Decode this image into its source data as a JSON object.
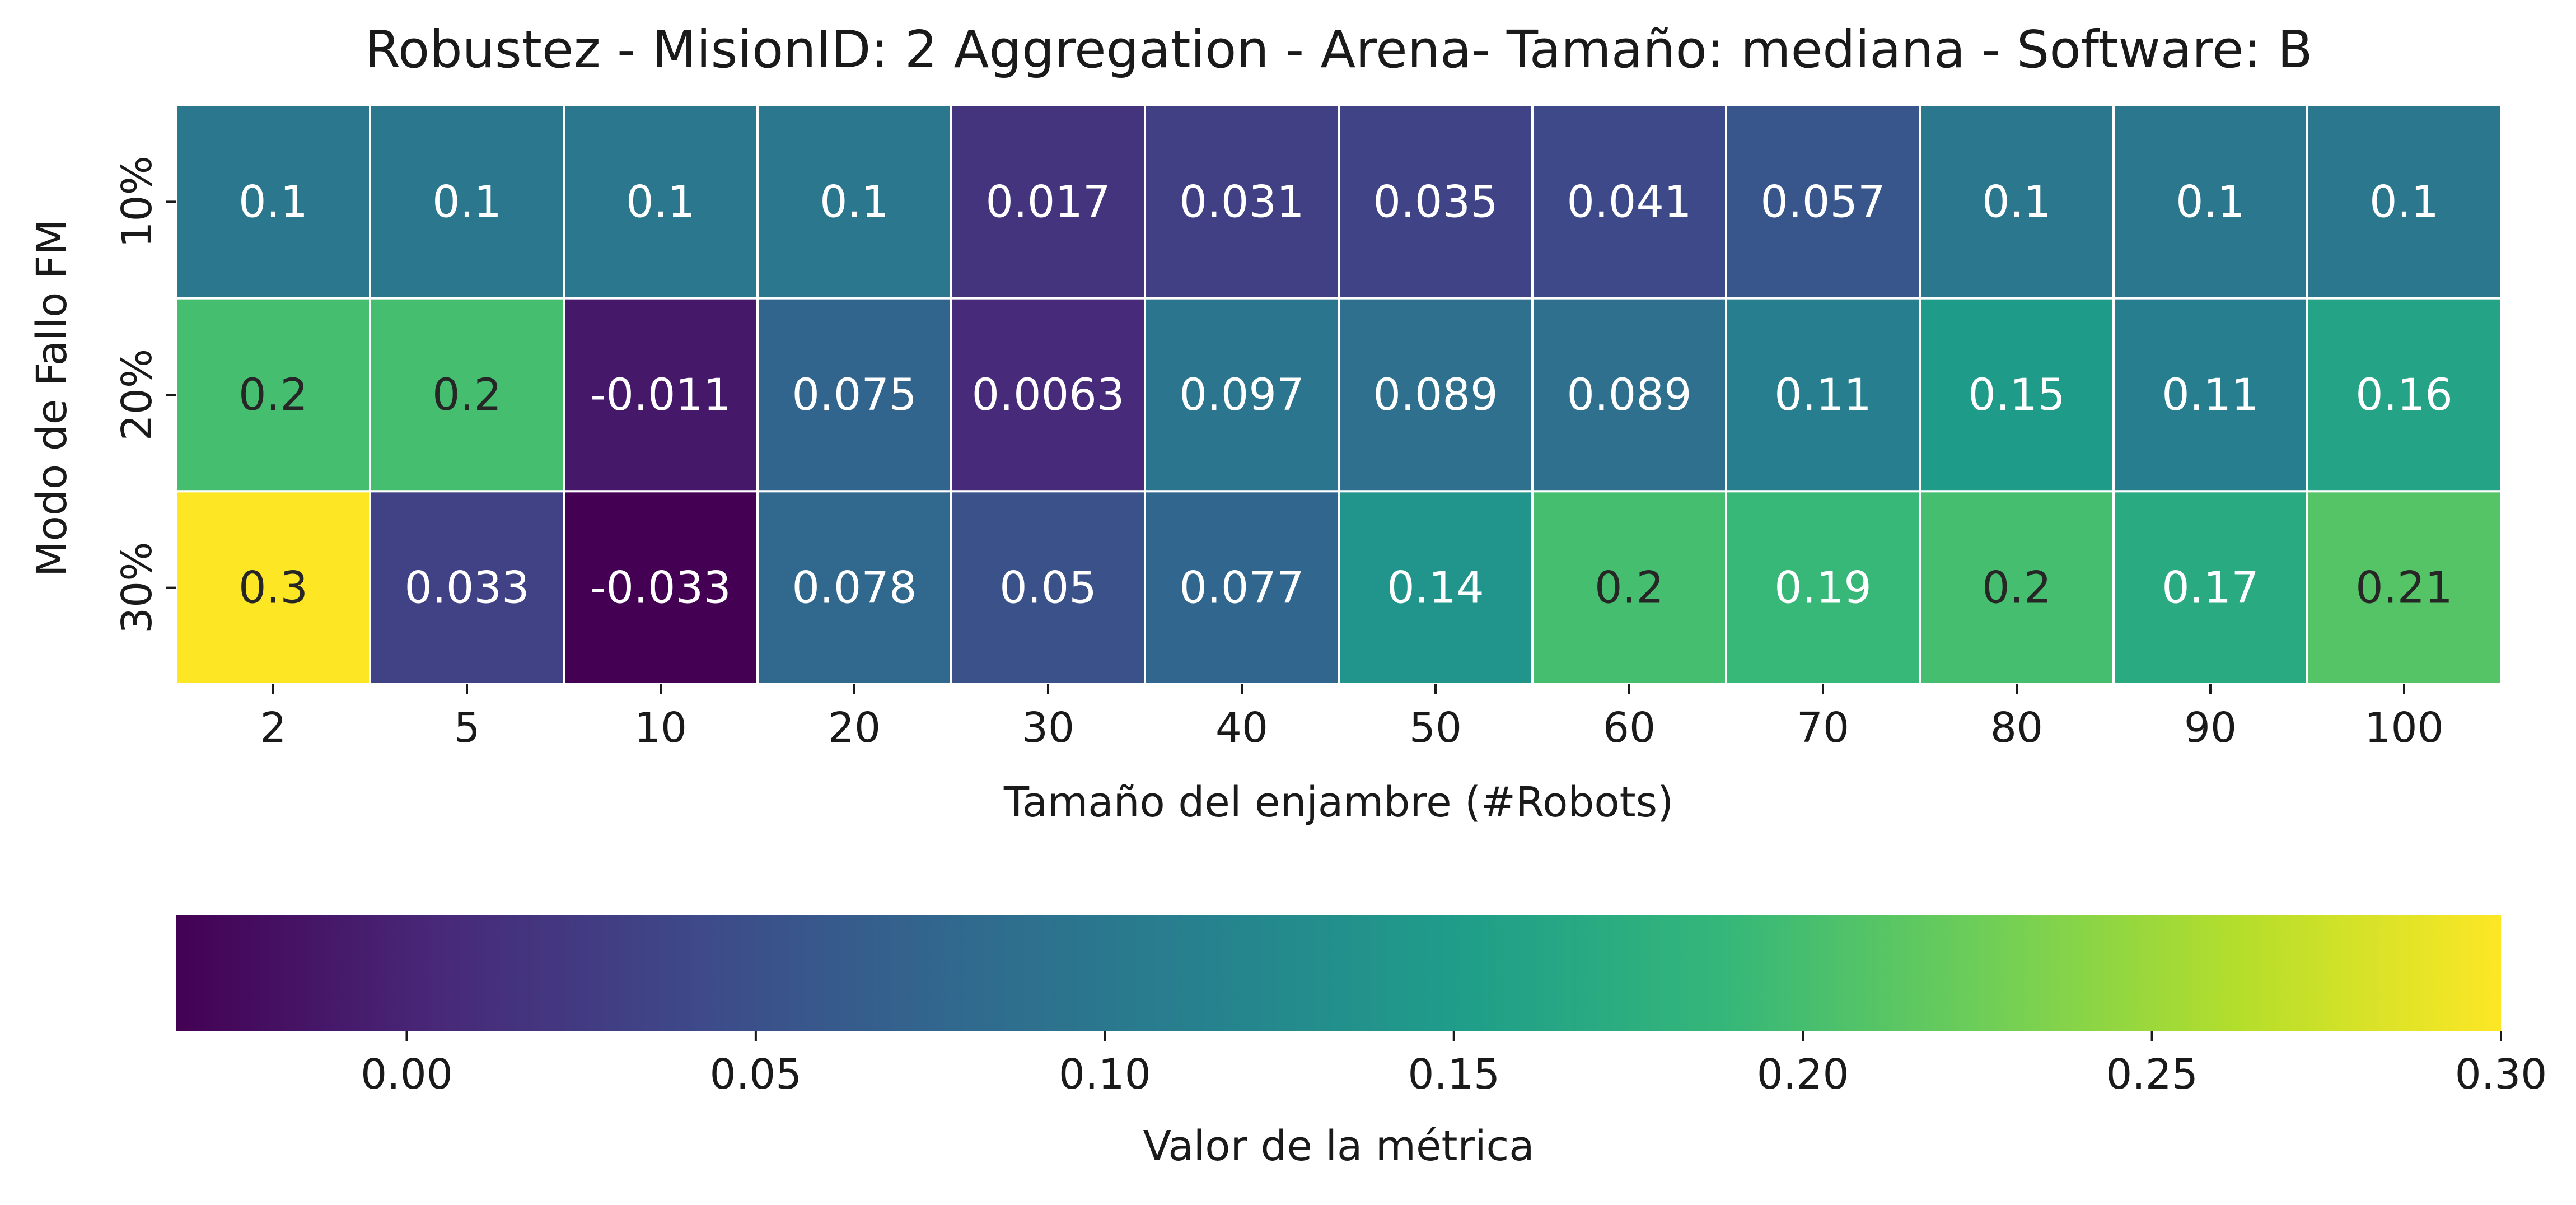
{
  "chart_data": {
    "type": "heatmap",
    "title": "Robustez - MisionID: 2 Aggregation - Arena- Tamaño: mediana - Software: B",
    "xlabel": "Tamaño del enjambre (#Robots)",
    "ylabel": "Modo de Fallo FM",
    "x_categories": [
      "2",
      "5",
      "10",
      "20",
      "30",
      "40",
      "50",
      "60",
      "70",
      "80",
      "90",
      "100"
    ],
    "y_categories": [
      "10%",
      "20%",
      "30%"
    ],
    "cell_labels": [
      [
        "0.1",
        "0.1",
        "0.1",
        "0.1",
        "0.017",
        "0.031",
        "0.035",
        "0.041",
        "0.057",
        "0.1",
        "0.1",
        "0.1"
      ],
      [
        "0.2",
        "0.2",
        "-0.011",
        "0.075",
        "0.0063",
        "0.097",
        "0.089",
        "0.089",
        "0.11",
        "0.15",
        "0.11",
        "0.16"
      ],
      [
        "0.3",
        "0.033",
        "-0.033",
        "0.078",
        "0.05",
        "0.077",
        "0.14",
        "0.2",
        "0.19",
        "0.2",
        "0.17",
        "0.21"
      ]
    ],
    "values": [
      [
        0.1,
        0.1,
        0.1,
        0.1,
        0.017,
        0.031,
        0.035,
        0.041,
        0.057,
        0.1,
        0.1,
        0.1
      ],
      [
        0.2,
        0.2,
        -0.011,
        0.075,
        0.0063,
        0.097,
        0.089,
        0.089,
        0.11,
        0.15,
        0.11,
        0.16
      ],
      [
        0.3,
        0.033,
        -0.033,
        0.078,
        0.05,
        0.077,
        0.14,
        0.2,
        0.19,
        0.2,
        0.17,
        0.21
      ]
    ],
    "colorbar": {
      "label": "Valor de la métrica",
      "range": [
        -0.033,
        0.3
      ],
      "ticks": [
        "0.00",
        "0.05",
        "0.10",
        "0.15",
        "0.20",
        "0.25",
        "0.30"
      ],
      "orientation": "horizontal",
      "position": "bottom"
    },
    "colormap": "viridis",
    "colormap_stops": [
      "#440154",
      "#482878",
      "#3e4989",
      "#31688e",
      "#26828e",
      "#1f9e89",
      "#35b779",
      "#6ece58",
      "#b5de2b",
      "#fde725"
    ],
    "grid_line_color": "#ffffff",
    "text_color_dark": "#262626",
    "text_color_light": "#ffffff"
  }
}
